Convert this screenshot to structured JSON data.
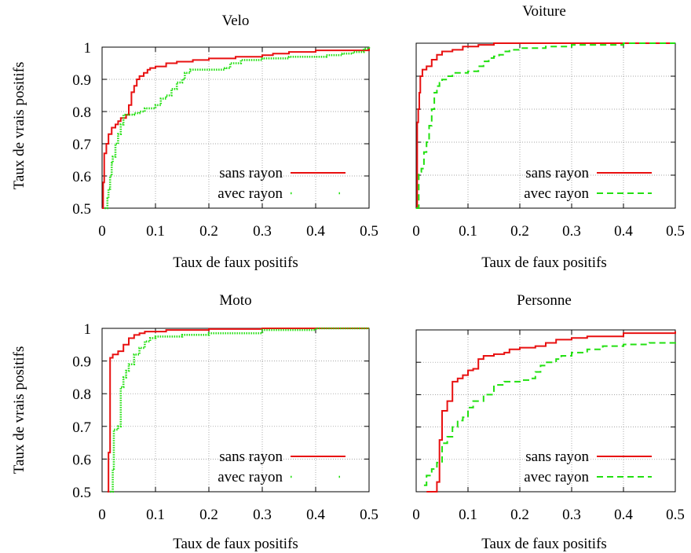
{
  "ylabel_left": "Taux de vrais positifs",
  "colors": {
    "sans_rayon": "#e81010",
    "avec_rayon": "#22e010",
    "grid": "#888888"
  },
  "chart_data": [
    {
      "type": "line",
      "title": "Velo",
      "xlabel": "Taux de faux positifs",
      "ylabel": "Taux de vrais positifs",
      "xlim": [
        0,
        0.5
      ],
      "ylim": [
        0.5,
        1
      ],
      "xticks": [
        "0",
        "0.1",
        "0.2",
        "0.3",
        "0.4",
        "0.5"
      ],
      "yticks": [
        "0.5",
        "0.6",
        "0.7",
        "0.8",
        "0.9",
        "1"
      ],
      "grid": true,
      "legend": "bottom-right",
      "series": [
        {
          "name": "sans rayon",
          "style": "solid",
          "points": [
            [
              0,
              0.5
            ],
            [
              0.002,
              0.58
            ],
            [
              0.004,
              0.67
            ],
            [
              0.008,
              0.7
            ],
            [
              0.012,
              0.73
            ],
            [
              0.018,
              0.75
            ],
            [
              0.025,
              0.76
            ],
            [
              0.03,
              0.77
            ],
            [
              0.035,
              0.78
            ],
            [
              0.045,
              0.79
            ],
            [
              0.05,
              0.82
            ],
            [
              0.055,
              0.86
            ],
            [
              0.06,
              0.88
            ],
            [
              0.065,
              0.9
            ],
            [
              0.07,
              0.91
            ],
            [
              0.078,
              0.92
            ],
            [
              0.085,
              0.93
            ],
            [
              0.09,
              0.935
            ],
            [
              0.1,
              0.94
            ],
            [
              0.12,
              0.95
            ],
            [
              0.14,
              0.955
            ],
            [
              0.17,
              0.96
            ],
            [
              0.2,
              0.965
            ],
            [
              0.25,
              0.97
            ],
            [
              0.3,
              0.975
            ],
            [
              0.32,
              0.98
            ],
            [
              0.35,
              0.985
            ],
            [
              0.4,
              0.99
            ],
            [
              0.45,
              0.99
            ],
            [
              0.5,
              0.995
            ]
          ]
        },
        {
          "name": "avec rayon",
          "style": "dotted",
          "points": [
            [
              0.005,
              0.5
            ],
            [
              0.01,
              0.53
            ],
            [
              0.012,
              0.56
            ],
            [
              0.015,
              0.6
            ],
            [
              0.018,
              0.64
            ],
            [
              0.02,
              0.66
            ],
            [
              0.025,
              0.7
            ],
            [
              0.03,
              0.73
            ],
            [
              0.035,
              0.76
            ],
            [
              0.04,
              0.79
            ],
            [
              0.05,
              0.79
            ],
            [
              0.06,
              0.795
            ],
            [
              0.07,
              0.8
            ],
            [
              0.08,
              0.81
            ],
            [
              0.09,
              0.81
            ],
            [
              0.1,
              0.82
            ],
            [
              0.11,
              0.84
            ],
            [
              0.12,
              0.85
            ],
            [
              0.13,
              0.87
            ],
            [
              0.14,
              0.89
            ],
            [
              0.15,
              0.9
            ],
            [
              0.155,
              0.92
            ],
            [
              0.165,
              0.93
            ],
            [
              0.2,
              0.93
            ],
            [
              0.23,
              0.935
            ],
            [
              0.24,
              0.95
            ],
            [
              0.26,
              0.96
            ],
            [
              0.3,
              0.965
            ],
            [
              0.35,
              0.97
            ],
            [
              0.42,
              0.975
            ],
            [
              0.45,
              0.98
            ],
            [
              0.47,
              0.985
            ],
            [
              0.49,
              0.995
            ],
            [
              0.5,
              1.0
            ]
          ]
        }
      ]
    },
    {
      "type": "line",
      "title": "Voiture",
      "xlabel": "Taux de faux positifs",
      "ylabel": "",
      "xlim": [
        0,
        0.5
      ],
      "ylim": [
        0.5,
        1
      ],
      "xticks": [
        "0",
        "0.1",
        "0.2",
        "0.3",
        "0.4",
        "0.5"
      ],
      "yticks": [],
      "grid": true,
      "legend": "bottom-right",
      "series": [
        {
          "name": "sans rayon",
          "style": "solid",
          "points": [
            [
              0,
              0.5
            ],
            [
              0.002,
              0.76
            ],
            [
              0.004,
              0.8
            ],
            [
              0.006,
              0.85
            ],
            [
              0.008,
              0.9
            ],
            [
              0.012,
              0.92
            ],
            [
              0.02,
              0.93
            ],
            [
              0.03,
              0.95
            ],
            [
              0.04,
              0.965
            ],
            [
              0.05,
              0.975
            ],
            [
              0.07,
              0.98
            ],
            [
              0.09,
              0.99
            ],
            [
              0.12,
              0.995
            ],
            [
              0.15,
              1.0
            ],
            [
              0.3,
              1.0
            ],
            [
              0.5,
              1.0
            ]
          ]
        },
        {
          "name": "avec rayon",
          "style": "dashed",
          "points": [
            [
              0,
              0.5
            ],
            [
              0.005,
              0.61
            ],
            [
              0.01,
              0.62
            ],
            [
              0.015,
              0.67
            ],
            [
              0.02,
              0.7
            ],
            [
              0.025,
              0.75
            ],
            [
              0.03,
              0.8
            ],
            [
              0.035,
              0.85
            ],
            [
              0.04,
              0.87
            ],
            [
              0.045,
              0.88
            ],
            [
              0.05,
              0.89
            ],
            [
              0.06,
              0.9
            ],
            [
              0.07,
              0.91
            ],
            [
              0.1,
              0.915
            ],
            [
              0.12,
              0.93
            ],
            [
              0.13,
              0.945
            ],
            [
              0.14,
              0.955
            ],
            [
              0.15,
              0.96
            ],
            [
              0.16,
              0.965
            ],
            [
              0.17,
              0.975
            ],
            [
              0.18,
              0.98
            ],
            [
              0.2,
              0.985
            ],
            [
              0.25,
              0.99
            ],
            [
              0.3,
              0.995
            ],
            [
              0.4,
              1.0
            ],
            [
              0.5,
              1.0
            ]
          ]
        }
      ]
    },
    {
      "type": "line",
      "title": "Moto",
      "xlabel": "Taux de faux positifs",
      "ylabel": "Taux de vrais positifs",
      "xlim": [
        0,
        0.5
      ],
      "ylim": [
        0.5,
        1
      ],
      "xticks": [
        "0",
        "0.1",
        "0.2",
        "0.3",
        "0.4",
        "0.5"
      ],
      "yticks": [
        "0.5",
        "0.6",
        "0.7",
        "0.8",
        "0.9",
        "1"
      ],
      "grid": true,
      "legend": "bottom-right",
      "series": [
        {
          "name": "sans rayon",
          "style": "solid",
          "points": [
            [
              0.01,
              0.5
            ],
            [
              0.012,
              0.62
            ],
            [
              0.015,
              0.91
            ],
            [
              0.02,
              0.92
            ],
            [
              0.03,
              0.93
            ],
            [
              0.04,
              0.95
            ],
            [
              0.05,
              0.97
            ],
            [
              0.06,
              0.98
            ],
            [
              0.07,
              0.985
            ],
            [
              0.08,
              0.99
            ],
            [
              0.12,
              0.995
            ],
            [
              0.2,
              0.998
            ],
            [
              0.3,
              1.0
            ],
            [
              0.5,
              1.0
            ]
          ]
        },
        {
          "name": "avec rayon",
          "style": "dotted",
          "points": [
            [
              0.015,
              0.5
            ],
            [
              0.02,
              0.57
            ],
            [
              0.022,
              0.69
            ],
            [
              0.03,
              0.7
            ],
            [
              0.035,
              0.82
            ],
            [
              0.04,
              0.85
            ],
            [
              0.045,
              0.87
            ],
            [
              0.05,
              0.89
            ],
            [
              0.06,
              0.92
            ],
            [
              0.07,
              0.94
            ],
            [
              0.08,
              0.96
            ],
            [
              0.09,
              0.97
            ],
            [
              0.1,
              0.975
            ],
            [
              0.15,
              0.98
            ],
            [
              0.2,
              0.985
            ],
            [
              0.3,
              0.995
            ],
            [
              0.4,
              1.0
            ],
            [
              0.5,
              1.0
            ]
          ]
        }
      ]
    },
    {
      "type": "line",
      "title": "Personne",
      "xlabel": "Taux de faux positifs",
      "ylabel": "",
      "xlim": [
        0,
        0.5
      ],
      "ylim": [
        0.5,
        1
      ],
      "xticks": [
        "0",
        "0.1",
        "0.2",
        "0.3",
        "0.4",
        "0.5"
      ],
      "yticks": [],
      "grid": true,
      "legend": "bottom-right",
      "series": [
        {
          "name": "sans rayon",
          "style": "solid",
          "points": [
            [
              0.02,
              0.5
            ],
            [
              0.03,
              0.5
            ],
            [
              0.04,
              0.53
            ],
            [
              0.045,
              0.66
            ],
            [
              0.05,
              0.75
            ],
            [
              0.06,
              0.78
            ],
            [
              0.07,
              0.84
            ],
            [
              0.08,
              0.85
            ],
            [
              0.09,
              0.86
            ],
            [
              0.1,
              0.875
            ],
            [
              0.11,
              0.88
            ],
            [
              0.12,
              0.91
            ],
            [
              0.13,
              0.92
            ],
            [
              0.15,
              0.925
            ],
            [
              0.17,
              0.93
            ],
            [
              0.18,
              0.94
            ],
            [
              0.2,
              0.945
            ],
            [
              0.23,
              0.95
            ],
            [
              0.25,
              0.96
            ],
            [
              0.27,
              0.97
            ],
            [
              0.3,
              0.975
            ],
            [
              0.33,
              0.98
            ],
            [
              0.4,
              0.99
            ],
            [
              0.5,
              0.995
            ]
          ]
        },
        {
          "name": "avec rayon",
          "style": "dashed",
          "points": [
            [
              0.015,
              0.52
            ],
            [
              0.02,
              0.55
            ],
            [
              0.03,
              0.57
            ],
            [
              0.04,
              0.59
            ],
            [
              0.05,
              0.65
            ],
            [
              0.06,
              0.67
            ],
            [
              0.07,
              0.7
            ],
            [
              0.08,
              0.72
            ],
            [
              0.09,
              0.73
            ],
            [
              0.1,
              0.76
            ],
            [
              0.11,
              0.78
            ],
            [
              0.13,
              0.8
            ],
            [
              0.15,
              0.83
            ],
            [
              0.17,
              0.84
            ],
            [
              0.2,
              0.845
            ],
            [
              0.22,
              0.85
            ],
            [
              0.23,
              0.87
            ],
            [
              0.24,
              0.89
            ],
            [
              0.25,
              0.9
            ],
            [
              0.27,
              0.91
            ],
            [
              0.28,
              0.92
            ],
            [
              0.3,
              0.93
            ],
            [
              0.33,
              0.94
            ],
            [
              0.36,
              0.95
            ],
            [
              0.4,
              0.955
            ],
            [
              0.45,
              0.96
            ],
            [
              0.5,
              0.965
            ]
          ]
        }
      ]
    }
  ]
}
